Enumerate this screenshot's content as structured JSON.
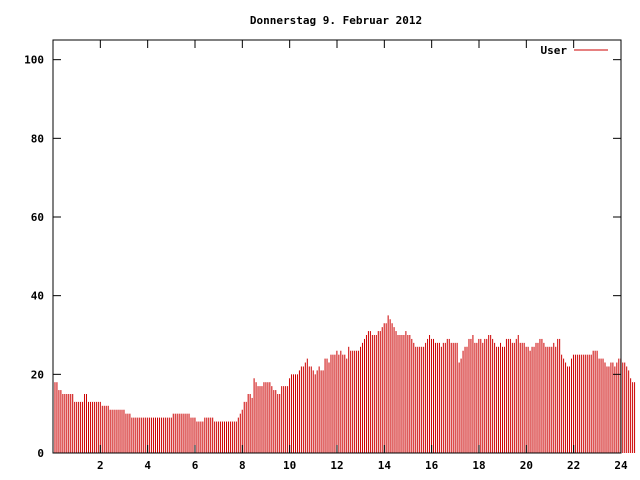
{
  "chart_data": {
    "type": "bar",
    "title": "Donnerstag 9. Februar 2012",
    "xlabel": "",
    "ylabel": "",
    "xlim": [
      0,
      24
    ],
    "ylim": [
      0,
      105
    ],
    "x_ticks": [
      2,
      4,
      6,
      8,
      10,
      12,
      14,
      16,
      18,
      20,
      22,
      24
    ],
    "y_ticks": [
      0,
      20,
      40,
      60,
      80,
      100
    ],
    "grid": false,
    "legend": "top-right",
    "series": [
      {
        "name": "User",
        "color": "#cc0000",
        "x_start": 0,
        "x_step": 0.0833,
        "values": [
          19,
          18,
          18,
          16,
          16,
          15,
          15,
          15,
          15,
          15,
          15,
          13,
          13,
          13,
          13,
          13,
          15,
          15,
          13,
          13,
          13,
          13,
          13,
          13,
          13,
          12,
          12,
          12,
          12,
          11,
          11,
          11,
          11,
          11,
          11,
          11,
          11,
          10,
          10,
          10,
          9,
          9,
          9,
          9,
          9,
          9,
          9,
          9,
          9,
          9,
          9,
          9,
          9,
          9,
          9,
          9,
          9,
          9,
          9,
          9,
          9,
          10,
          10,
          10,
          10,
          10,
          10,
          10,
          10,
          10,
          9,
          9,
          9,
          8,
          8,
          8,
          8,
          9,
          9,
          9,
          9,
          9,
          8,
          8,
          8,
          8,
          8,
          8,
          8,
          8,
          8,
          8,
          8,
          8,
          9,
          10,
          11,
          13,
          13,
          15,
          15,
          14,
          19,
          18,
          17,
          17,
          17,
          18,
          18,
          18,
          18,
          17,
          16,
          16,
          15,
          15,
          17,
          17,
          17,
          17,
          19,
          20,
          20,
          20,
          20,
          21,
          22,
          22,
          23,
          24,
          22,
          22,
          21,
          20,
          21,
          22,
          21,
          21,
          24,
          24,
          23,
          25,
          25,
          25,
          26,
          25,
          26,
          25,
          25,
          24,
          27,
          26,
          26,
          26,
          26,
          26,
          27,
          28,
          29,
          30,
          31,
          31,
          30,
          30,
          30,
          31,
          31,
          32,
          33,
          33,
          35,
          34,
          33,
          32,
          31,
          30,
          30,
          30,
          30,
          31,
          30,
          30,
          29,
          28,
          27,
          27,
          27,
          27,
          27,
          28,
          29,
          30,
          29,
          29,
          28,
          28,
          28,
          27,
          28,
          28,
          29,
          29,
          28,
          28,
          28,
          28,
          23,
          24,
          26,
          27,
          27,
          29,
          29,
          30,
          28,
          28,
          29,
          29,
          28,
          29,
          29,
          30,
          30,
          29,
          28,
          27,
          27,
          28,
          27,
          27,
          29,
          29,
          29,
          28,
          28,
          29,
          30,
          28,
          28,
          28,
          27,
          27,
          26,
          27,
          27,
          28,
          28,
          29,
          29,
          28,
          27,
          27,
          27,
          27,
          28,
          27,
          29,
          29,
          25,
          24,
          23,
          22,
          22,
          24,
          25,
          25,
          25,
          25,
          25,
          25,
          25,
          25,
          25,
          25,
          26,
          26,
          26,
          24,
          24,
          24,
          23,
          22,
          22,
          23,
          23,
          22,
          23,
          24,
          24,
          23,
          23,
          22,
          21,
          19,
          18,
          18
        ]
      }
    ]
  }
}
